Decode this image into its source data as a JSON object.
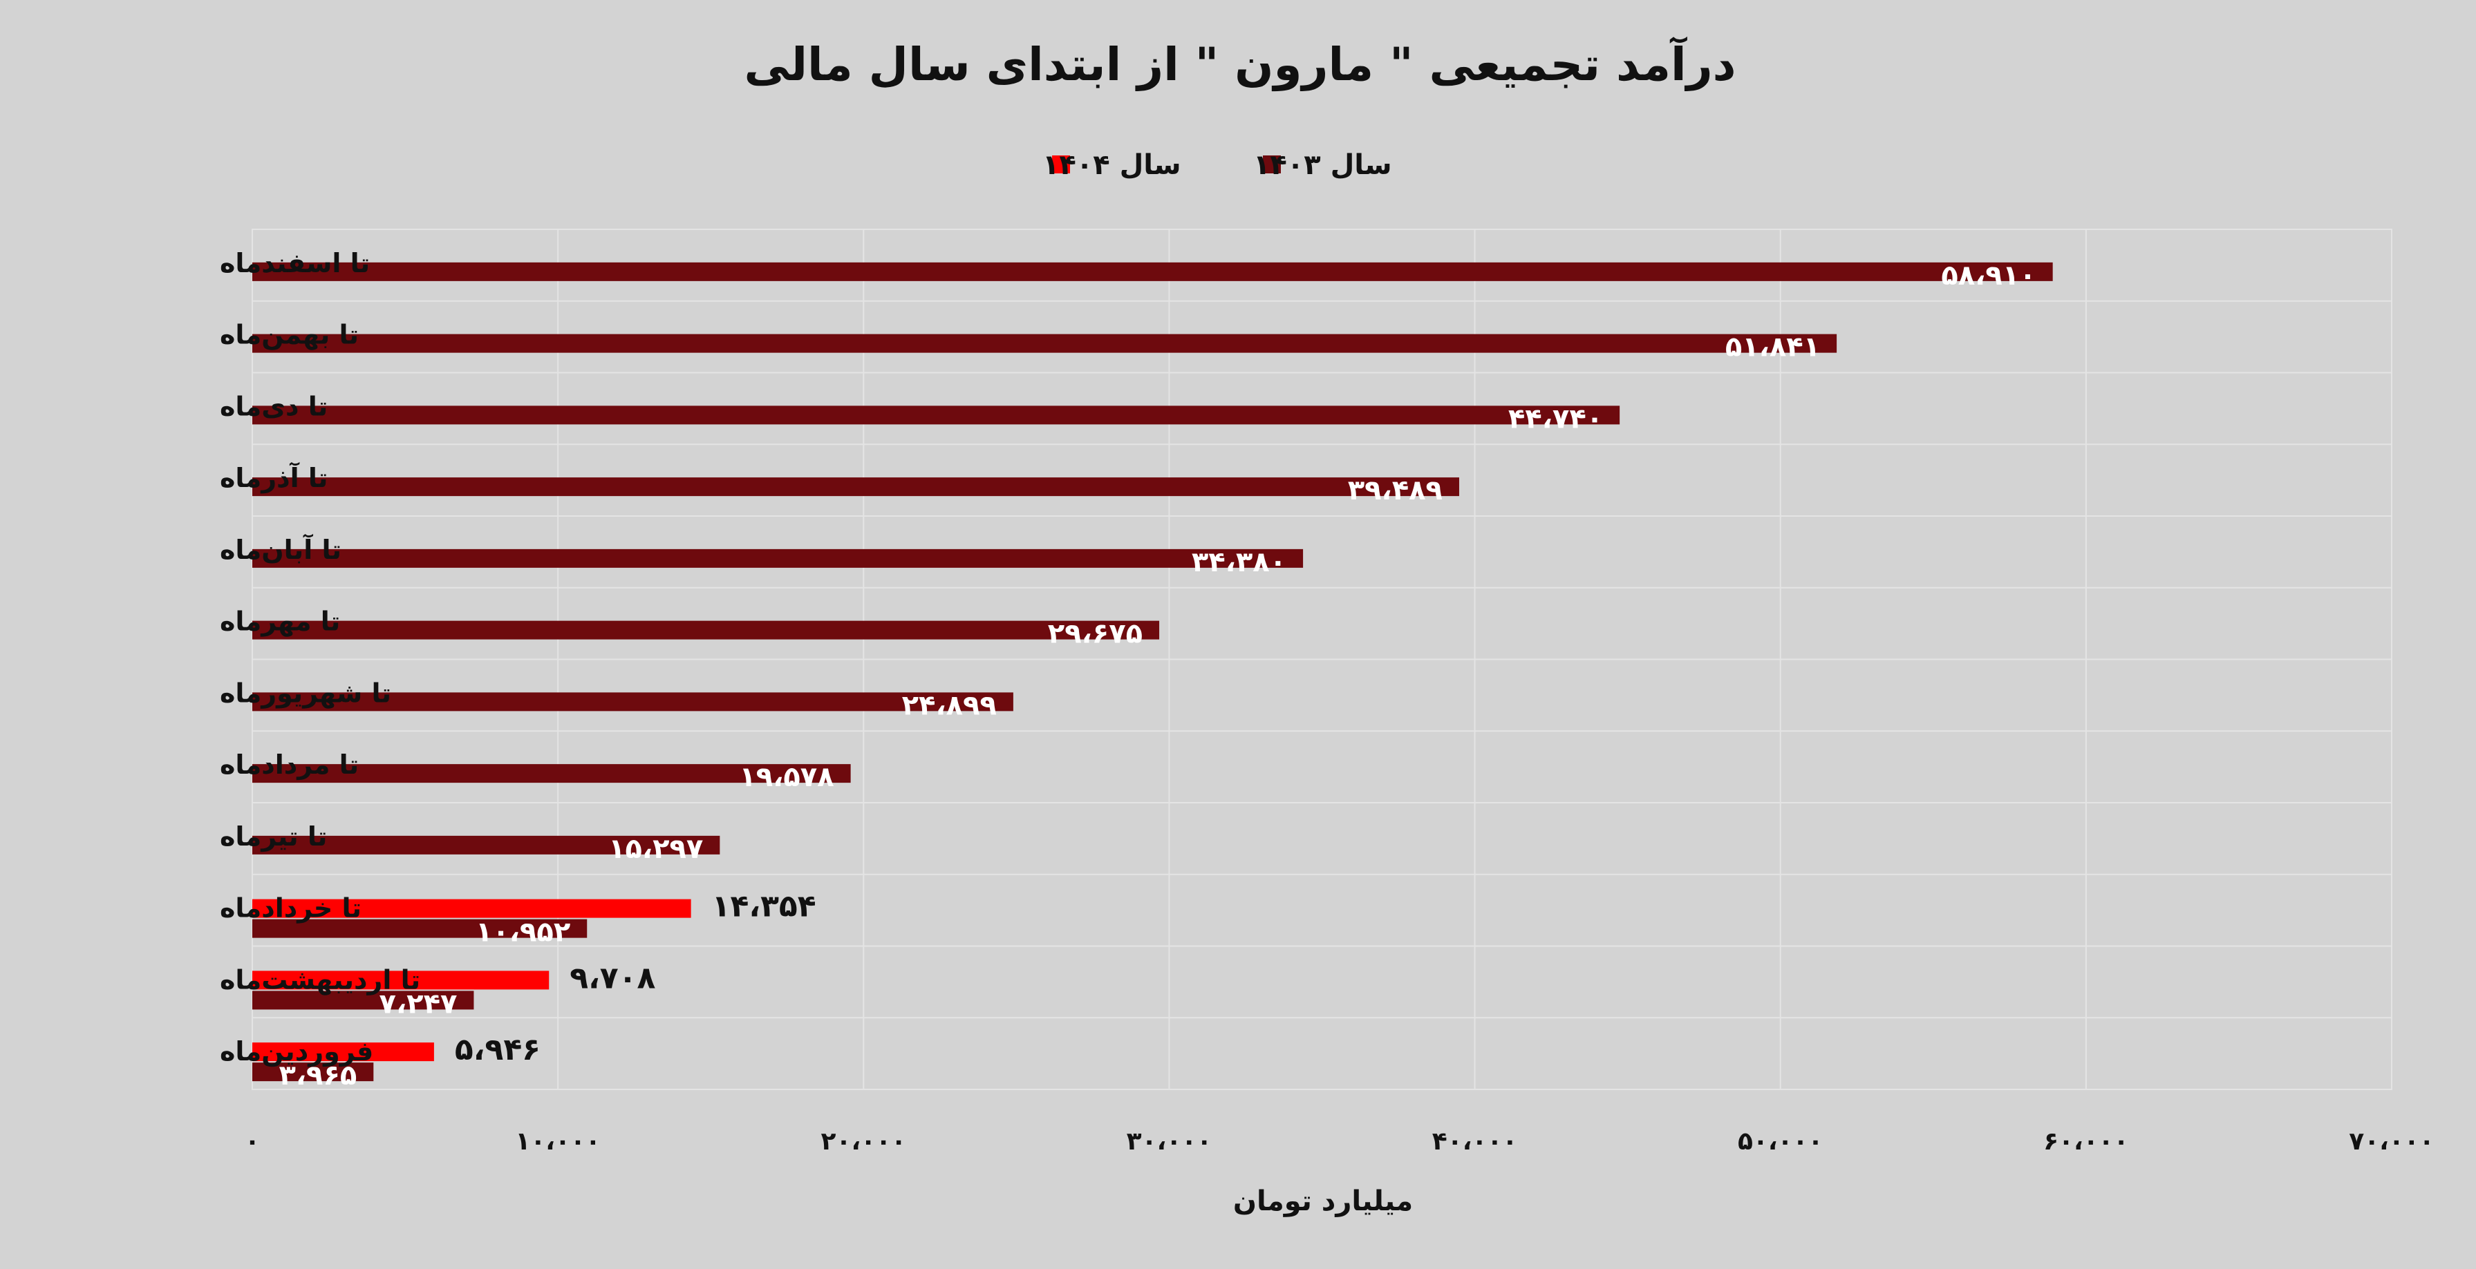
{
  "chart_data": {
    "type": "bar",
    "orientation": "horizontal",
    "title": "درآمد تجمیعی \" مارون \" از ابتدای سال مالی",
    "xlabel": "میلیارد تومان",
    "ylabel": "",
    "xlim": [
      0,
      70000
    ],
    "x_ticks": [
      "۰",
      "۱۰،۰۰۰",
      "۲۰،۰۰۰",
      "۳۰،۰۰۰",
      "۴۰،۰۰۰",
      "۵۰،۰۰۰",
      "۶۰،۰۰۰",
      "۷۰،۰۰۰"
    ],
    "grid": true,
    "legend_position": "top",
    "categories": [
      "تا اسفندماه",
      "تا بهمن‌ماه",
      "تا دی‌ماه",
      "تا آذرماه",
      "تا آبان‌ماه",
      "تا مهرماه",
      "تا شهریورماه",
      "تا مردادماه",
      "تا تیرماه",
      "تا خردادماه",
      "تا اردیبهشت‌ماه",
      "فروردین‌ماه"
    ],
    "series": [
      {
        "name": "سال ۱۴۰۴",
        "color": "#ff0000",
        "values": [
          null,
          null,
          null,
          null,
          null,
          null,
          null,
          null,
          null,
          14354,
          9708,
          5946
        ],
        "labels": [
          "",
          "",
          "",
          "",
          "",
          "",
          "",
          "",
          "",
          "۱۴،۳۵۴",
          "۹،۷۰۸",
          "۵،۹۴۶"
        ]
      },
      {
        "name": "سال ۱۴۰۳",
        "color": "#6e0a0e",
        "values": [
          58910,
          51841,
          44740,
          39489,
          34380,
          29675,
          24899,
          19578,
          15297,
          10952,
          7247,
          3965
        ],
        "labels": [
          "۵۸،۹۱۰",
          "۵۱،۸۴۱",
          "۴۴،۷۴۰",
          "۳۹،۴۸۹",
          "۳۴،۳۸۰",
          "۲۹،۶۷۵",
          "۲۴،۸۹۹",
          "۱۹،۵۷۸",
          "۱۵،۲۹۷",
          "۱۰،۹۵۲",
          "۷،۲۴۷",
          "۳،۹۶۵"
        ]
      }
    ]
  }
}
